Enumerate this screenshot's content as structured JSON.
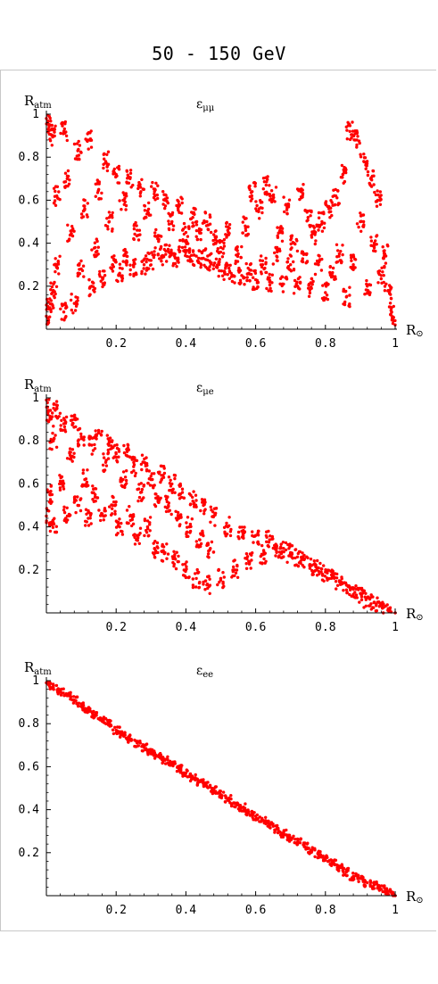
{
  "title": "50 - 150 GeV",
  "colors": {
    "points": "#ff0000",
    "axis": "#000000",
    "frame": "#c8c8c8"
  },
  "chart_data": [
    {
      "type": "scatter",
      "title": "ε",
      "title_sub": "μμ",
      "xlabel": "R",
      "xlabel_symbol": "⊙",
      "ylabel": "R",
      "ylabel_sub": "atm",
      "xlim": [
        0,
        1
      ],
      "ylim": [
        0,
        1
      ],
      "xticks": [
        "0.2",
        "0.4",
        "0.6",
        "0.8",
        "1"
      ],
      "yticks": [
        "0.2",
        "0.4",
        "0.6",
        "0.8",
        "1"
      ],
      "grid": false,
      "points": [
        [
          0.0,
          0.98
        ],
        [
          0.0,
          0.06
        ],
        [
          0.01,
          0.95
        ],
        [
          0.01,
          0.1
        ],
        [
          0.02,
          0.9
        ],
        [
          0.02,
          0.18
        ],
        [
          0.03,
          0.62
        ],
        [
          0.03,
          0.3
        ],
        [
          0.05,
          0.92
        ],
        [
          0.05,
          0.08
        ],
        [
          0.06,
          0.7
        ],
        [
          0.07,
          0.44
        ],
        [
          0.08,
          0.12
        ],
        [
          0.09,
          0.83
        ],
        [
          0.1,
          0.28
        ],
        [
          0.11,
          0.56
        ],
        [
          0.12,
          0.88
        ],
        [
          0.13,
          0.2
        ],
        [
          0.14,
          0.38
        ],
        [
          0.15,
          0.65
        ],
        [
          0.16,
          0.24
        ],
        [
          0.17,
          0.78
        ],
        [
          0.18,
          0.5
        ],
        [
          0.19,
          0.3
        ],
        [
          0.2,
          0.72
        ],
        [
          0.21,
          0.26
        ],
        [
          0.22,
          0.6
        ],
        [
          0.23,
          0.34
        ],
        [
          0.24,
          0.7
        ],
        [
          0.25,
          0.29
        ],
        [
          0.26,
          0.46
        ],
        [
          0.27,
          0.66
        ],
        [
          0.28,
          0.3
        ],
        [
          0.29,
          0.55
        ],
        [
          0.3,
          0.32
        ],
        [
          0.31,
          0.64
        ],
        [
          0.32,
          0.42
        ],
        [
          0.33,
          0.34
        ],
        [
          0.34,
          0.6
        ],
        [
          0.35,
          0.36
        ],
        [
          0.36,
          0.5
        ],
        [
          0.37,
          0.33
        ],
        [
          0.38,
          0.58
        ],
        [
          0.39,
          0.38
        ],
        [
          0.4,
          0.45
        ],
        [
          0.41,
          0.36
        ],
        [
          0.42,
          0.52
        ],
        [
          0.43,
          0.34
        ],
        [
          0.44,
          0.46
        ],
        [
          0.45,
          0.33
        ],
        [
          0.46,
          0.5
        ],
        [
          0.47,
          0.31
        ],
        [
          0.48,
          0.44
        ],
        [
          0.49,
          0.29
        ],
        [
          0.5,
          0.38
        ],
        [
          0.51,
          0.27
        ],
        [
          0.52,
          0.46
        ],
        [
          0.53,
          0.26
        ],
        [
          0.55,
          0.35
        ],
        [
          0.56,
          0.25
        ],
        [
          0.57,
          0.48
        ],
        [
          0.58,
          0.26
        ],
        [
          0.59,
          0.64
        ],
        [
          0.6,
          0.23
        ],
        [
          0.61,
          0.56
        ],
        [
          0.62,
          0.3
        ],
        [
          0.63,
          0.67
        ],
        [
          0.64,
          0.22
        ],
        [
          0.65,
          0.62
        ],
        [
          0.66,
          0.34
        ],
        [
          0.67,
          0.45
        ],
        [
          0.68,
          0.21
        ],
        [
          0.69,
          0.58
        ],
        [
          0.7,
          0.3
        ],
        [
          0.71,
          0.4
        ],
        [
          0.72,
          0.2
        ],
        [
          0.73,
          0.64
        ],
        [
          0.74,
          0.35
        ],
        [
          0.75,
          0.52
        ],
        [
          0.76,
          0.19
        ],
        [
          0.77,
          0.44
        ],
        [
          0.78,
          0.3
        ],
        [
          0.79,
          0.5
        ],
        [
          0.8,
          0.17
        ],
        [
          0.81,
          0.56
        ],
        [
          0.82,
          0.25
        ],
        [
          0.83,
          0.62
        ],
        [
          0.84,
          0.35
        ],
        [
          0.85,
          0.72
        ],
        [
          0.86,
          0.15
        ],
        [
          0.87,
          0.92
        ],
        [
          0.88,
          0.3
        ],
        [
          0.89,
          0.88
        ],
        [
          0.9,
          0.5
        ],
        [
          0.91,
          0.78
        ],
        [
          0.92,
          0.2
        ],
        [
          0.93,
          0.7
        ],
        [
          0.94,
          0.4
        ],
        [
          0.95,
          0.6
        ],
        [
          0.96,
          0.25
        ],
        [
          0.97,
          0.35
        ],
        [
          0.98,
          0.18
        ],
        [
          0.99,
          0.08
        ],
        [
          1.0,
          0.02
        ]
      ]
    },
    {
      "type": "scatter",
      "title": "ε",
      "title_sub": "μe",
      "xlabel": "R",
      "xlabel_symbol": "⊙",
      "ylabel": "R",
      "ylabel_sub": "atm",
      "xlim": [
        0,
        1
      ],
      "ylim": [
        0,
        1
      ],
      "xticks": [
        "0.2",
        "0.4",
        "0.6",
        "0.8",
        "1"
      ],
      "yticks": [
        "0.2",
        "0.4",
        "0.6",
        "0.8",
        "1"
      ],
      "grid": false,
      "points": [
        [
          0.0,
          0.99
        ],
        [
          0.0,
          0.45
        ],
        [
          0.01,
          0.9
        ],
        [
          0.01,
          0.55
        ],
        [
          0.02,
          0.8
        ],
        [
          0.02,
          0.42
        ],
        [
          0.03,
          0.95
        ],
        [
          0.04,
          0.6
        ],
        [
          0.05,
          0.88
        ],
        [
          0.06,
          0.45
        ],
        [
          0.07,
          0.72
        ],
        [
          0.08,
          0.9
        ],
        [
          0.09,
          0.5
        ],
        [
          0.1,
          0.82
        ],
        [
          0.11,
          0.62
        ],
        [
          0.12,
          0.44
        ],
        [
          0.13,
          0.78
        ],
        [
          0.14,
          0.55
        ],
        [
          0.15,
          0.84
        ],
        [
          0.16,
          0.46
        ],
        [
          0.17,
          0.7
        ],
        [
          0.18,
          0.8
        ],
        [
          0.19,
          0.5
        ],
        [
          0.2,
          0.74
        ],
        [
          0.21,
          0.4
        ],
        [
          0.22,
          0.62
        ],
        [
          0.23,
          0.76
        ],
        [
          0.24,
          0.45
        ],
        [
          0.25,
          0.68
        ],
        [
          0.26,
          0.36
        ],
        [
          0.27,
          0.56
        ],
        [
          0.28,
          0.7
        ],
        [
          0.29,
          0.4
        ],
        [
          0.3,
          0.62
        ],
        [
          0.31,
          0.3
        ],
        [
          0.32,
          0.52
        ],
        [
          0.33,
          0.64
        ],
        [
          0.34,
          0.28
        ],
        [
          0.35,
          0.5
        ],
        [
          0.36,
          0.6
        ],
        [
          0.37,
          0.25
        ],
        [
          0.38,
          0.44
        ],
        [
          0.39,
          0.56
        ],
        [
          0.4,
          0.2
        ],
        [
          0.41,
          0.4
        ],
        [
          0.42,
          0.52
        ],
        [
          0.43,
          0.16
        ],
        [
          0.44,
          0.34
        ],
        [
          0.45,
          0.5
        ],
        [
          0.46,
          0.13
        ],
        [
          0.47,
          0.3
        ],
        [
          0.48,
          0.45
        ],
        [
          0.5,
          0.16
        ],
        [
          0.52,
          0.4
        ],
        [
          0.54,
          0.2
        ],
        [
          0.56,
          0.38
        ],
        [
          0.58,
          0.24
        ],
        [
          0.6,
          0.36
        ],
        [
          0.62,
          0.27
        ],
        [
          0.64,
          0.34
        ],
        [
          0.66,
          0.3
        ],
        [
          0.68,
          0.3
        ],
        [
          0.7,
          0.28
        ],
        [
          0.72,
          0.26
        ],
        [
          0.74,
          0.25
        ],
        [
          0.76,
          0.22
        ],
        [
          0.78,
          0.21
        ],
        [
          0.8,
          0.19
        ],
        [
          0.82,
          0.17
        ],
        [
          0.84,
          0.15
        ],
        [
          0.86,
          0.13
        ],
        [
          0.88,
          0.11
        ],
        [
          0.9,
          0.09
        ],
        [
          0.92,
          0.07
        ],
        [
          0.94,
          0.05
        ],
        [
          0.96,
          0.04
        ],
        [
          0.98,
          0.02
        ],
        [
          1.0,
          0.0
        ]
      ]
    },
    {
      "type": "scatter",
      "title": "ε",
      "title_sub": "ee",
      "xlabel": "R",
      "xlabel_symbol": "⊙",
      "ylabel": "R",
      "ylabel_sub": "atm",
      "xlim": [
        0,
        1
      ],
      "ylim": [
        0,
        1
      ],
      "xticks": [
        "0.2",
        "0.4",
        "0.6",
        "0.8",
        "1"
      ],
      "yticks": [
        "0.2",
        "0.4",
        "0.6",
        "0.8",
        "1"
      ],
      "grid": false,
      "points": [
        [
          0.0,
          0.99
        ],
        [
          0.02,
          0.97
        ],
        [
          0.04,
          0.95
        ],
        [
          0.06,
          0.93
        ],
        [
          0.08,
          0.91
        ],
        [
          0.1,
          0.88
        ],
        [
          0.12,
          0.86
        ],
        [
          0.14,
          0.84
        ],
        [
          0.16,
          0.82
        ],
        [
          0.18,
          0.8
        ],
        [
          0.2,
          0.77
        ],
        [
          0.22,
          0.75
        ],
        [
          0.24,
          0.73
        ],
        [
          0.26,
          0.71
        ],
        [
          0.28,
          0.69
        ],
        [
          0.3,
          0.67
        ],
        [
          0.32,
          0.65
        ],
        [
          0.34,
          0.63
        ],
        [
          0.36,
          0.61
        ],
        [
          0.38,
          0.59
        ],
        [
          0.4,
          0.57
        ],
        [
          0.42,
          0.55
        ],
        [
          0.44,
          0.53
        ],
        [
          0.46,
          0.51
        ],
        [
          0.48,
          0.49
        ],
        [
          0.5,
          0.47
        ],
        [
          0.52,
          0.45
        ],
        [
          0.54,
          0.43
        ],
        [
          0.56,
          0.41
        ],
        [
          0.58,
          0.39
        ],
        [
          0.6,
          0.37
        ],
        [
          0.62,
          0.35
        ],
        [
          0.64,
          0.33
        ],
        [
          0.66,
          0.31
        ],
        [
          0.68,
          0.29
        ],
        [
          0.7,
          0.27
        ],
        [
          0.72,
          0.25
        ],
        [
          0.74,
          0.23
        ],
        [
          0.76,
          0.21
        ],
        [
          0.78,
          0.19
        ],
        [
          0.8,
          0.17
        ],
        [
          0.82,
          0.15
        ],
        [
          0.84,
          0.13
        ],
        [
          0.86,
          0.11
        ],
        [
          0.88,
          0.09
        ],
        [
          0.9,
          0.08
        ],
        [
          0.92,
          0.06
        ],
        [
          0.94,
          0.05
        ],
        [
          0.96,
          0.03
        ],
        [
          0.98,
          0.02
        ],
        [
          1.0,
          0.0
        ]
      ]
    }
  ]
}
